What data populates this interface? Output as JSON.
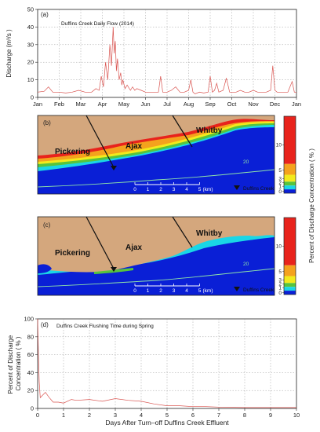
{
  "panel_a": {
    "label": "(a)",
    "title": "Duffins Creek Daily Flow (2014)",
    "ylabel": "Discharge (m³/s )",
    "months": [
      "Jan",
      "Feb",
      "Mar",
      "Apr",
      "May",
      "Jun",
      "Jul",
      "Aug",
      "Sep",
      "Oct",
      "Nov",
      "Dec",
      "Jan"
    ]
  },
  "panel_b": {
    "label": "(b)"
  },
  "panel_c": {
    "label": "(c)"
  },
  "map": {
    "towns": [
      "Pickering",
      "Ajax",
      "Whitby"
    ],
    "contour_label": "20",
    "scale_ticks": [
      "0",
      "1",
      "2",
      "3",
      "4",
      "5"
    ],
    "scale_unit": "(km)",
    "marker_label": "Duffins Creek"
  },
  "colorbar": {
    "label": "Percent of Discharge Concentration ( % )",
    "ticks": [
      "10",
      "5",
      "3",
      "2",
      "1",
      "0"
    ],
    "colors": {
      "land": "#d4a77d",
      "water": "#0a1fd6",
      "red": "#e8231c",
      "orange": "#f4a21d",
      "yellow": "#f2ea1c",
      "green": "#57c43c",
      "cyan": "#1ad6e6",
      "contour": "#8fe3a9"
    }
  },
  "panel_d": {
    "label": "(d)",
    "title": "Duffins Creek Flushing Time during Spring",
    "ylabel": "Percent of Discharge Concentration ( % )",
    "xlabel": "Days After Turn–off Duffins Creek Effluent"
  },
  "chart_data": [
    {
      "type": "line",
      "title": "Duffins Creek Daily Flow (2014)",
      "ylabel": "Discharge (m³/s )",
      "xlabel": "",
      "ylim": [
        0,
        50
      ],
      "yticks": [
        0,
        10,
        20,
        30,
        40,
        50
      ],
      "x_categories": [
        "Jan",
        "Feb",
        "Mar",
        "Apr",
        "May",
        "Jun",
        "Jul",
        "Aug",
        "Sep",
        "Oct",
        "Nov",
        "Dec",
        "Jan"
      ],
      "grid": true,
      "series": [
        {
          "color": "#d9534f",
          "x_month": [
            0,
            0.3,
            0.5,
            0.7,
            1.0,
            1.3,
            1.6,
            1.9,
            2.2,
            2.5,
            2.7,
            2.85,
            2.95,
            3.05,
            3.15,
            3.25,
            3.35,
            3.42,
            3.5,
            3.55,
            3.6,
            3.65,
            3.7,
            3.78,
            3.85,
            3.9,
            3.95,
            4.05,
            4.15,
            4.3,
            4.4,
            4.5,
            4.6,
            4.8,
            5.0,
            5.2,
            5.4,
            5.6,
            5.7,
            5.8,
            6.0,
            6.2,
            6.4,
            6.6,
            6.8,
            7.0,
            7.1,
            7.2,
            7.3,
            7.5,
            7.7,
            7.9,
            8.0,
            8.1,
            8.2,
            8.3,
            8.4,
            8.6,
            8.75,
            8.9,
            9.0,
            9.2,
            9.4,
            9.6,
            9.8,
            10.0,
            10.2,
            10.4,
            10.6,
            10.8,
            10.9,
            11.0,
            11.1,
            11.3,
            11.6,
            11.8,
            11.9,
            12.0
          ],
          "values": [
            3,
            3.5,
            6,
            3,
            3,
            2.5,
            3,
            4,
            3,
            3,
            5,
            4,
            12,
            6,
            20,
            10,
            30,
            18,
            40,
            25,
            32,
            15,
            22,
            10,
            14,
            7,
            10,
            5,
            7,
            4,
            6,
            4,
            5,
            4,
            3,
            3,
            3,
            3,
            12,
            3,
            3,
            4,
            6,
            3,
            3,
            4,
            10,
            3,
            2,
            3,
            2.5,
            3,
            12,
            3,
            4,
            8,
            3,
            4,
            11,
            3,
            3,
            3,
            4,
            3,
            3,
            4,
            3,
            3,
            3,
            4,
            18,
            4,
            3,
            3,
            3,
            9,
            3,
            3
          ]
        }
      ]
    },
    {
      "type": "line",
      "title": "Duffins Creek Flushing Time during Spring",
      "ylabel": "Percent of Discharge Concentration ( % )",
      "xlabel": "Days After Turn–off Duffins Creek Effluent",
      "xlim": [
        0,
        10
      ],
      "ylim": [
        0,
        100
      ],
      "xticks": [
        0,
        1,
        2,
        3,
        4,
        5,
        6,
        7,
        8,
        9,
        10
      ],
      "yticks": [
        0,
        20,
        40,
        60,
        80,
        100
      ],
      "grid": true,
      "series": [
        {
          "color": "#d9534f",
          "x": [
            0,
            0.03,
            0.06,
            0.1,
            0.2,
            0.3,
            0.45,
            0.6,
            0.8,
            1.0,
            1.3,
            1.5,
            2.0,
            2.5,
            3.0,
            3.5,
            4.0,
            4.5,
            5.0,
            5.5,
            6.0,
            6.5,
            7.0,
            8.0,
            9.0,
            10.0
          ],
          "values": [
            100,
            60,
            30,
            12,
            15,
            18,
            12,
            7,
            7,
            6,
            10,
            9,
            10,
            8,
            11,
            9,
            8,
            5,
            3,
            3,
            2,
            2,
            1.5,
            1,
            1,
            1
          ]
        }
      ]
    }
  ]
}
